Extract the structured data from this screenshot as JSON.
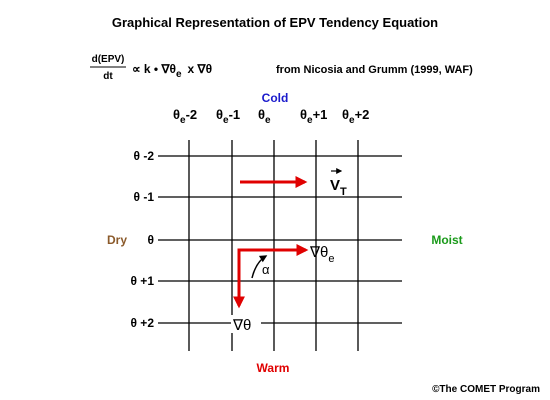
{
  "title": "Graphical Representation of EPV Tendency Equation",
  "equation": {
    "numerator": "d(EPV)",
    "denominator": "dt",
    "rhs_a": "∝ k • ∇θ",
    "rhs_sub": "e",
    "rhs_b": "x  ∇θ",
    "source": "from Nicosia and Grumm (1999, WAF)"
  },
  "column_labels": [
    {
      "base": "θ",
      "sub": "e",
      "suffix": "-2"
    },
    {
      "base": "θ",
      "sub": "e",
      "suffix": "-1"
    },
    {
      "base": "θ",
      "sub": "e"
    },
    {
      "base": "θ",
      "sub": "e",
      "suffix": "+1"
    },
    {
      "base": "θ",
      "sub": "e",
      "suffix": "+2"
    }
  ],
  "row_labels": [
    "θ -2",
    "θ -1",
    "θ",
    "θ +1",
    "θ +2"
  ],
  "side_labels": {
    "top": "Cold",
    "bottom": "Warm",
    "left": "Dry",
    "right": "Moist"
  },
  "vectors": {
    "thermal_wind": {
      "base": "V",
      "sub": "T"
    },
    "grad_theta_e": {
      "base": "∇θ",
      "sub": "e"
    },
    "grad_theta": "∇θ",
    "angle": "α"
  },
  "credit": "©The COMET Program"
}
